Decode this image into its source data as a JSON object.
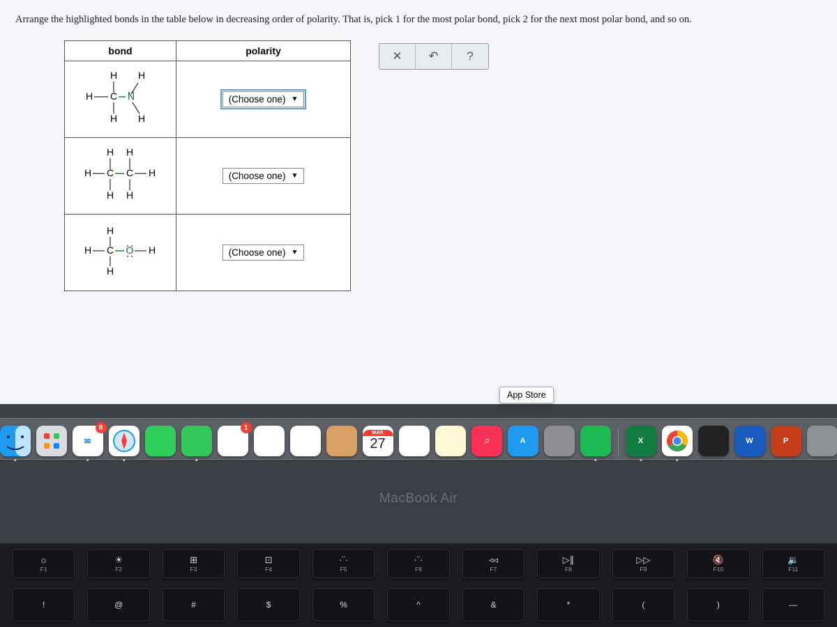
{
  "instructions": {
    "text_before_one": "Arrange the highlighted bonds in the table below in decreasing order of polarity. That is, pick ",
    "one": "1",
    "text_mid": " for the most polar bond, pick ",
    "two": "2",
    "text_after": " for the next most polar bond, and so on."
  },
  "table": {
    "header_bond": "bond",
    "header_polarity": "polarity",
    "rows": [
      {
        "dropdown_label": "(Choose one)",
        "active": true
      },
      {
        "dropdown_label": "(Choose one)",
        "active": false
      },
      {
        "dropdown_label": "(Choose one)",
        "active": false
      }
    ]
  },
  "toolbar": {
    "close": "✕",
    "undo": "↶",
    "help": "?"
  },
  "tooltip": {
    "text": "App Store"
  },
  "dock": {
    "apps": [
      {
        "name": "finder",
        "bg": "#1e9bf0",
        "label": "",
        "dot": true,
        "badge": ""
      },
      {
        "name": "launchpad",
        "bg": "#d9dde2",
        "label": "",
        "dot": false,
        "badge": ""
      },
      {
        "name": "mail",
        "bg": "#ffffff",
        "label": "✉",
        "dot": true,
        "badge": "8"
      },
      {
        "name": "safari",
        "bg": "#ffffff",
        "label": "",
        "dot": true,
        "badge": ""
      },
      {
        "name": "facetime",
        "bg": "#2fce5a",
        "label": "",
        "dot": false,
        "badge": ""
      },
      {
        "name": "messages",
        "bg": "#34c759",
        "label": "",
        "dot": true,
        "badge": ""
      },
      {
        "name": "app1",
        "bg": "#ffffff",
        "label": "",
        "dot": false,
        "badge": "1"
      },
      {
        "name": "maps",
        "bg": "#ffffff",
        "label": "",
        "dot": false,
        "badge": ""
      },
      {
        "name": "photos",
        "bg": "#ffffff",
        "label": "",
        "dot": false,
        "badge": ""
      },
      {
        "name": "contacts",
        "bg": "#d9a066",
        "label": "",
        "dot": false,
        "badge": ""
      },
      {
        "name": "calendar",
        "bg": "#ffffff",
        "label": "",
        "dot": false,
        "badge": "",
        "cal_month": "MAR",
        "cal_day": "27"
      },
      {
        "name": "reminders",
        "bg": "#ffffff",
        "label": "",
        "dot": false,
        "badge": ""
      },
      {
        "name": "notes",
        "bg": "#fff8d6",
        "label": "",
        "dot": false,
        "badge": ""
      },
      {
        "name": "music",
        "bg": "#fc3158",
        "label": "♫",
        "dot": false,
        "badge": ""
      },
      {
        "name": "appstore",
        "bg": "#1e9bf0",
        "label": "A",
        "dot": false,
        "badge": ""
      },
      {
        "name": "settings",
        "bg": "#8e8e93",
        "label": "",
        "dot": false,
        "badge": ""
      },
      {
        "name": "spotify",
        "bg": "#1db954",
        "label": "",
        "dot": true,
        "badge": ""
      },
      {
        "name": "sep",
        "bg": "",
        "label": "",
        "dot": false,
        "badge": ""
      },
      {
        "name": "excel",
        "bg": "#107c41",
        "label": "X",
        "dot": true,
        "badge": ""
      },
      {
        "name": "chrome",
        "bg": "#ffffff",
        "label": "",
        "dot": true,
        "badge": ""
      },
      {
        "name": "game",
        "bg": "#222222",
        "label": "",
        "dot": false,
        "badge": ""
      },
      {
        "name": "word",
        "bg": "#185abd",
        "label": "W",
        "dot": false,
        "badge": ""
      },
      {
        "name": "ppt",
        "bg": "#c43e1c",
        "label": "P",
        "dot": false,
        "badge": ""
      },
      {
        "name": "trash",
        "bg": "#8e9196",
        "label": "",
        "dot": false,
        "badge": ""
      }
    ]
  },
  "device_label": "MacBook Air",
  "keyboard": {
    "row1": [
      {
        "icon": "☼",
        "sub": "F1"
      },
      {
        "icon": "☀",
        "sub": "F2"
      },
      {
        "icon": "⊞",
        "sub": "F3"
      },
      {
        "icon": "⊡",
        "sub": "F4"
      },
      {
        "icon": "·¨·",
        "sub": "F5"
      },
      {
        "icon": "·¨·",
        "sub": "F6"
      },
      {
        "icon": "◃◃",
        "sub": "F7"
      },
      {
        "icon": "▷∥",
        "sub": "F8"
      },
      {
        "icon": "▷▷",
        "sub": "F9"
      },
      {
        "icon": "🔇",
        "sub": "F10"
      },
      {
        "icon": "🔉",
        "sub": "F11"
      }
    ],
    "row2": [
      {
        "top": "!",
        "bot": ""
      },
      {
        "top": "@",
        "bot": ""
      },
      {
        "top": "#",
        "bot": ""
      },
      {
        "top": "$",
        "bot": ""
      },
      {
        "top": "%",
        "bot": ""
      },
      {
        "top": "^",
        "bot": ""
      },
      {
        "top": "&",
        "bot": ""
      },
      {
        "top": "*",
        "bot": ""
      },
      {
        "top": "(",
        "bot": ""
      },
      {
        "top": ")",
        "bot": ""
      },
      {
        "top": "—",
        "bot": ""
      }
    ]
  },
  "colors": {
    "page_bg": "#f4f6f9",
    "photo_bg": "#3a3e45",
    "table_border": "#555555",
    "dropdown_focus": "#5a9fe0",
    "key_bg": "#111317",
    "key_fg": "#d6d8dc"
  }
}
